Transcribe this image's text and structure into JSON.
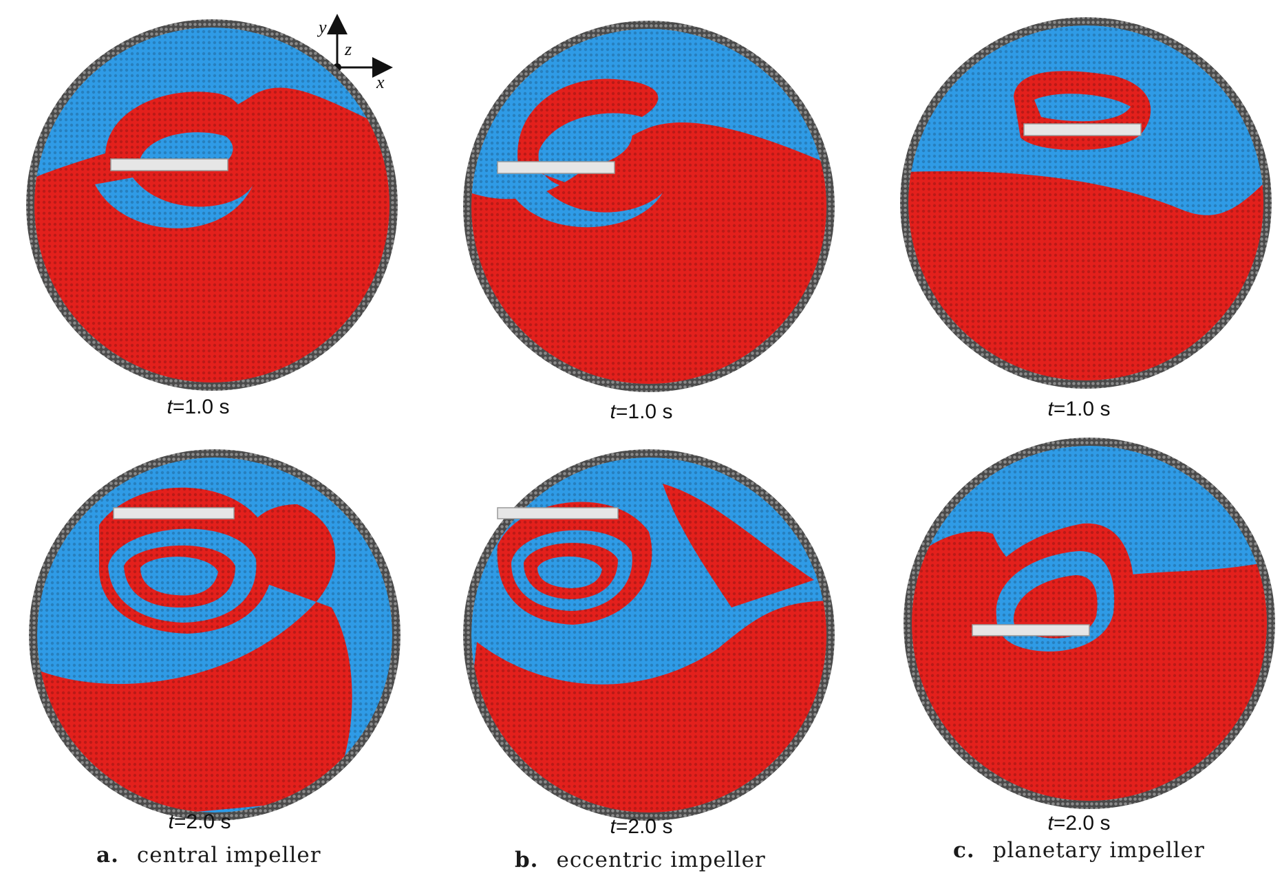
{
  "colors": {
    "red_particles": "#e3201c",
    "blue_particles": "#2f9be6",
    "wall": "#4a4a4a",
    "impeller": "#e6e6e6"
  },
  "axes": {
    "y": "y",
    "z": "z",
    "x": "x"
  },
  "columns": [
    {
      "id": "a",
      "letter": "a.",
      "caption": "central impeller",
      "panels": [
        {
          "time_var": "t",
          "time_value": "=1.0 s"
        },
        {
          "time_var": "t",
          "time_value": "=2.0 s"
        }
      ]
    },
    {
      "id": "b",
      "letter": "b.",
      "caption": "eccentric impeller",
      "panels": [
        {
          "time_var": "t",
          "time_value": "=1.0 s"
        },
        {
          "time_var": "t",
          "time_value": "=2.0 s"
        }
      ]
    },
    {
      "id": "c",
      "letter": "c.",
      "caption": "planetary impeller",
      "panels": [
        {
          "time_var": "t",
          "time_value": "=1.0 s"
        },
        {
          "time_var": "t",
          "time_value": "=2.0 s"
        }
      ]
    }
  ]
}
